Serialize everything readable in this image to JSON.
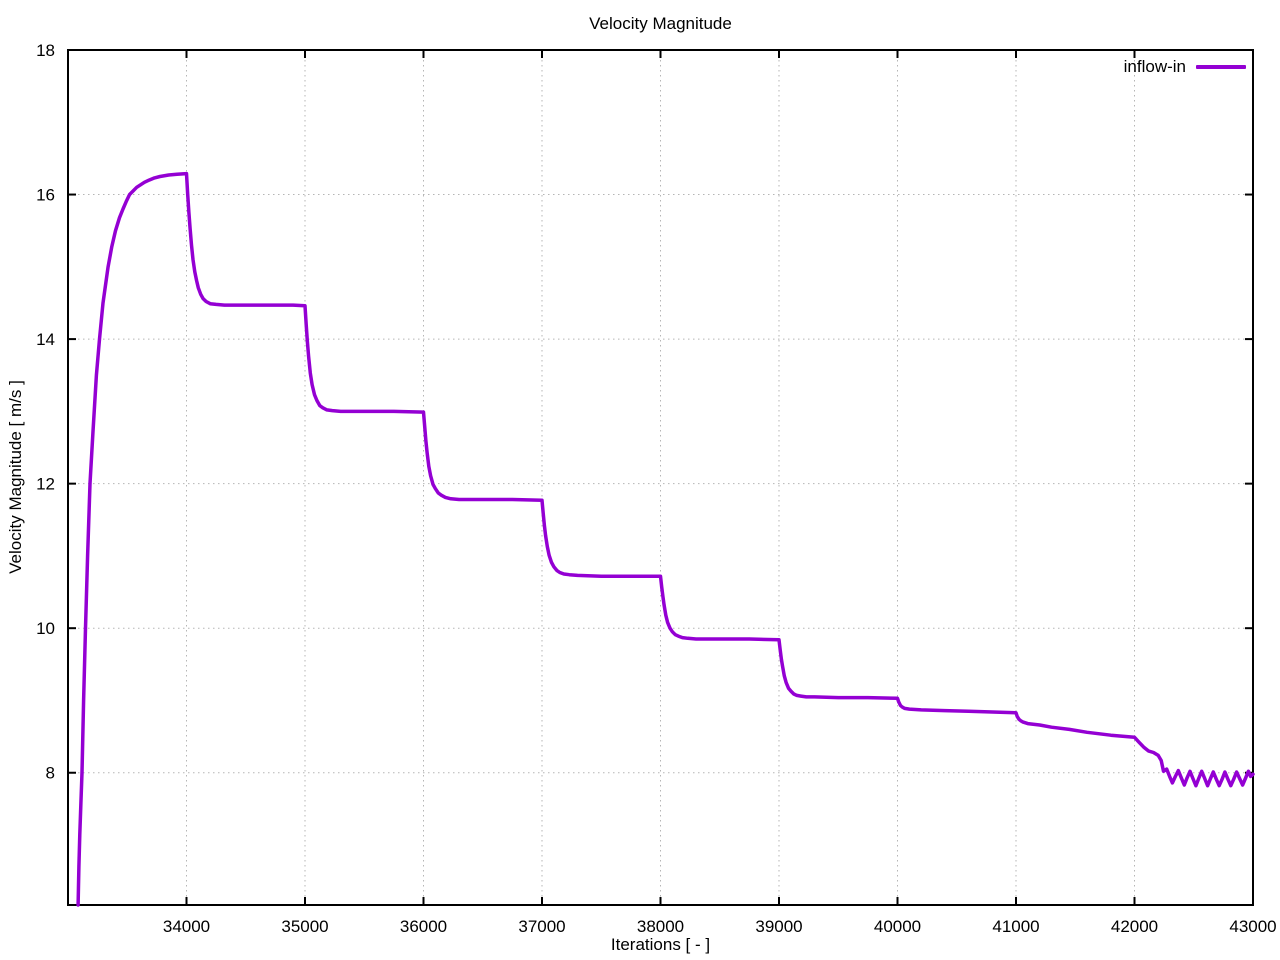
{
  "title": "Velocity Magnitude",
  "chart_data": {
    "type": "line",
    "title": "Velocity Magnitude",
    "xlabel": "Iterations [ - ]",
    "ylabel": "Velocity Magnitude [ m/s ]",
    "xlim": [
      33000,
      43000
    ],
    "ylim": [
      6.17,
      18
    ],
    "x_ticks": [
      34000,
      35000,
      36000,
      37000,
      38000,
      39000,
      40000,
      41000,
      42000,
      43000
    ],
    "y_ticks": [
      8,
      10,
      12,
      14,
      16,
      18
    ],
    "grid": true,
    "grid_style": "dotted",
    "legend_position": "top-right-inside",
    "colors": {
      "line": "#9400D3",
      "grid": "#b5b5b5",
      "frame": "#000000",
      "background": "#ffffff",
      "text": "#000000"
    },
    "series": [
      {
        "name": "inflow-in",
        "color": "#9400D3",
        "points": [
          [
            33085,
            6.17
          ],
          [
            33092,
            6.7
          ],
          [
            33100,
            7.15
          ],
          [
            33110,
            7.62
          ],
          [
            33118,
            8.0
          ],
          [
            33132,
            9.0
          ],
          [
            33148,
            10.0
          ],
          [
            33165,
            11.0
          ],
          [
            33186,
            12.0
          ],
          [
            33210,
            12.7
          ],
          [
            33240,
            13.5
          ],
          [
            33266,
            14.0
          ],
          [
            33295,
            14.5
          ],
          [
            33338,
            15.0
          ],
          [
            33370,
            15.28
          ],
          [
            33401,
            15.5
          ],
          [
            33435,
            15.68
          ],
          [
            33464,
            15.8
          ],
          [
            33490,
            15.9
          ],
          [
            33520,
            16.0
          ],
          [
            33580,
            16.1
          ],
          [
            33645,
            16.17
          ],
          [
            33684,
            16.2
          ],
          [
            33730,
            16.23
          ],
          [
            33776,
            16.25
          ],
          [
            33850,
            16.27
          ],
          [
            33920,
            16.28
          ],
          [
            34000,
            16.29
          ],
          [
            34010,
            16.0
          ],
          [
            34020,
            15.75
          ],
          [
            34030,
            15.53
          ],
          [
            34042,
            15.3
          ],
          [
            34055,
            15.1
          ],
          [
            34070,
            14.93
          ],
          [
            34085,
            14.81
          ],
          [
            34100,
            14.71
          ],
          [
            34120,
            14.62
          ],
          [
            34140,
            14.56
          ],
          [
            34165,
            14.52
          ],
          [
            34200,
            14.49
          ],
          [
            34250,
            14.48
          ],
          [
            34320,
            14.47
          ],
          [
            34500,
            14.47
          ],
          [
            34700,
            14.47
          ],
          [
            34900,
            14.47
          ],
          [
            35000,
            14.46
          ],
          [
            35010,
            14.2
          ],
          [
            35020,
            13.96
          ],
          [
            35030,
            13.76
          ],
          [
            35045,
            13.53
          ],
          [
            35060,
            13.37
          ],
          [
            35080,
            13.23
          ],
          [
            35100,
            13.15
          ],
          [
            35125,
            13.08
          ],
          [
            35150,
            13.05
          ],
          [
            35185,
            13.02
          ],
          [
            35230,
            13.01
          ],
          [
            35300,
            13.0
          ],
          [
            35500,
            13.0
          ],
          [
            35750,
            13.0
          ],
          [
            36000,
            12.99
          ],
          [
            36010,
            12.79
          ],
          [
            36020,
            12.59
          ],
          [
            36030,
            12.43
          ],
          [
            36045,
            12.24
          ],
          [
            36060,
            12.11
          ],
          [
            36080,
            11.99
          ],
          [
            36100,
            11.93
          ],
          [
            36125,
            11.87
          ],
          [
            36150,
            11.84
          ],
          [
            36185,
            11.81
          ],
          [
            36230,
            11.79
          ],
          [
            36300,
            11.78
          ],
          [
            36500,
            11.78
          ],
          [
            36750,
            11.78
          ],
          [
            37000,
            11.77
          ],
          [
            37010,
            11.59
          ],
          [
            37020,
            11.42
          ],
          [
            37030,
            11.28
          ],
          [
            37045,
            11.13
          ],
          [
            37060,
            11.01
          ],
          [
            37080,
            10.91
          ],
          [
            37100,
            10.85
          ],
          [
            37125,
            10.8
          ],
          [
            37150,
            10.77
          ],
          [
            37185,
            10.75
          ],
          [
            37230,
            10.74
          ],
          [
            37300,
            10.73
          ],
          [
            37500,
            10.72
          ],
          [
            37750,
            10.72
          ],
          [
            38000,
            10.72
          ],
          [
            38010,
            10.57
          ],
          [
            38020,
            10.44
          ],
          [
            38030,
            10.32
          ],
          [
            38045,
            10.18
          ],
          [
            38060,
            10.08
          ],
          [
            38080,
            10.0
          ],
          [
            38100,
            9.95
          ],
          [
            38125,
            9.91
          ],
          [
            38150,
            9.89
          ],
          [
            38185,
            9.87
          ],
          [
            38230,
            9.86
          ],
          [
            38300,
            9.85
          ],
          [
            38500,
            9.85
          ],
          [
            38750,
            9.85
          ],
          [
            39000,
            9.84
          ],
          [
            39010,
            9.7
          ],
          [
            39020,
            9.57
          ],
          [
            39030,
            9.47
          ],
          [
            39045,
            9.34
          ],
          [
            39060,
            9.25
          ],
          [
            39080,
            9.17
          ],
          [
            39100,
            9.13
          ],
          [
            39125,
            9.09
          ],
          [
            39150,
            9.07
          ],
          [
            39185,
            9.06
          ],
          [
            39230,
            9.05
          ],
          [
            39300,
            9.05
          ],
          [
            39500,
            9.04
          ],
          [
            39750,
            9.04
          ],
          [
            40000,
            9.03
          ],
          [
            40010,
            8.98
          ],
          [
            40025,
            8.93
          ],
          [
            40040,
            8.91
          ],
          [
            40060,
            8.89
          ],
          [
            40100,
            8.88
          ],
          [
            40200,
            8.87
          ],
          [
            40400,
            8.86
          ],
          [
            40600,
            8.85
          ],
          [
            40800,
            8.84
          ],
          [
            41000,
            8.83
          ],
          [
            41010,
            8.78
          ],
          [
            41025,
            8.74
          ],
          [
            41040,
            8.72
          ],
          [
            41060,
            8.7
          ],
          [
            41100,
            8.68
          ],
          [
            41200,
            8.66
          ],
          [
            41300,
            8.63
          ],
          [
            41450,
            8.6
          ],
          [
            41600,
            8.56
          ],
          [
            41800,
            8.52
          ],
          [
            42000,
            8.49
          ],
          [
            42040,
            8.42
          ],
          [
            42080,
            8.35
          ],
          [
            42120,
            8.3
          ],
          [
            42160,
            8.28
          ],
          [
            42200,
            8.24
          ],
          [
            42225,
            8.17
          ],
          [
            42245,
            8.02
          ],
          [
            42272,
            8.05
          ],
          [
            42296,
            7.95
          ],
          [
            42320,
            7.86
          ],
          [
            42345,
            7.95
          ],
          [
            42370,
            8.03
          ],
          [
            42395,
            7.93
          ],
          [
            42420,
            7.83
          ],
          [
            42444,
            7.93
          ],
          [
            42468,
            8.02
          ],
          [
            42493,
            7.92
          ],
          [
            42518,
            7.82
          ],
          [
            42542,
            7.92
          ],
          [
            42567,
            8.02
          ],
          [
            42592,
            7.92
          ],
          [
            42617,
            7.82
          ],
          [
            42641,
            7.92
          ],
          [
            42665,
            8.01
          ],
          [
            42690,
            7.91
          ],
          [
            42715,
            7.82
          ],
          [
            42739,
            7.91
          ],
          [
            42763,
            8.01
          ],
          [
            42788,
            7.91
          ],
          [
            42813,
            7.82
          ],
          [
            42837,
            7.91
          ],
          [
            42862,
            8.01
          ],
          [
            42887,
            7.92
          ],
          [
            42912,
            7.83
          ],
          [
            42936,
            7.92
          ],
          [
            42961,
            8.02
          ],
          [
            42980,
            7.95
          ],
          [
            43000,
            7.98
          ]
        ]
      }
    ]
  }
}
